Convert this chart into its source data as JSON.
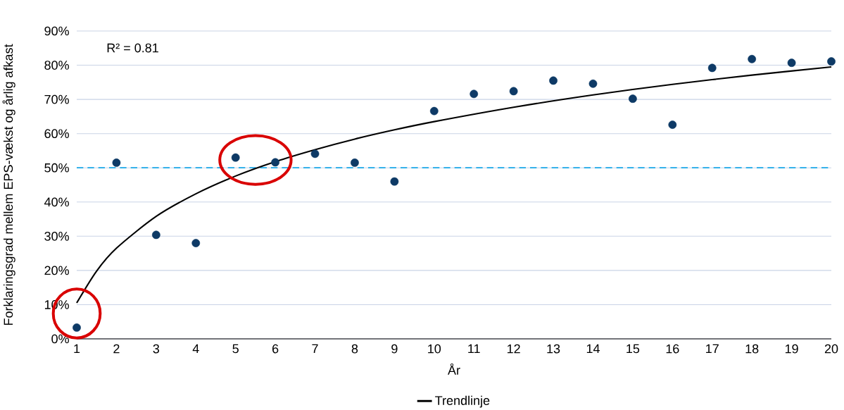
{
  "chart_data": {
    "type": "scatter",
    "xlabel": "År",
    "ylabel": "Forklaringsgrad mellem EPS-vækst og årlig afkast",
    "annotations": [
      "R² = 0.81"
    ],
    "series": [
      {
        "color": "#0e3a66",
        "marker": "circle",
        "x": [
          1,
          2,
          3,
          4,
          5,
          6,
          7,
          8,
          9,
          10,
          11,
          12,
          13,
          14,
          15,
          16,
          17,
          18,
          19,
          20
        ],
        "values": [
          3.3,
          51.5,
          30.4,
          28,
          53,
          51.6,
          54.1,
          51.5,
          46,
          66.6,
          71.6,
          72.4,
          75.5,
          74.6,
          70.2,
          62.6,
          79.2,
          81.8,
          80.7,
          81.1
        ]
      },
      {
        "type": "line",
        "name": "Trendlinje",
        "color": "#000000",
        "x": [
          1,
          1.5,
          2,
          3,
          4,
          5,
          6,
          7,
          8,
          9,
          10,
          12,
          14,
          16,
          18,
          20
        ],
        "values": [
          10.5,
          19.8,
          26.5,
          35.8,
          42.4,
          47.6,
          51.8,
          55.3,
          58.4,
          61.1,
          63.5,
          67.7,
          71.3,
          74.4,
          77.1,
          79.5
        ]
      }
    ],
    "ref_lines": [
      {
        "axis": "y",
        "value": 50,
        "color": "#1aa7e8",
        "line_style": "dashed"
      }
    ],
    "xlim": [
      1,
      20
    ],
    "xticks": [
      1,
      2,
      3,
      4,
      5,
      6,
      7,
      8,
      9,
      10,
      11,
      12,
      13,
      14,
      15,
      16,
      17,
      18,
      19,
      20
    ],
    "ylim": [
      0,
      90
    ],
    "yticks": [
      {
        "value": 0,
        "label": "0%"
      },
      {
        "value": 10,
        "label": "10%"
      },
      {
        "value": 20,
        "label": "20%"
      },
      {
        "value": 30,
        "label": "30%"
      },
      {
        "value": 40,
        "label": "40%"
      },
      {
        "value": 50,
        "label": "50%"
      },
      {
        "value": 60,
        "label": "60%"
      },
      {
        "value": 70,
        "label": "70%"
      },
      {
        "value": 80,
        "label": "80%"
      },
      {
        "value": 90,
        "label": "90%"
      }
    ],
    "grid": "y",
    "legend": "bottom"
  }
}
